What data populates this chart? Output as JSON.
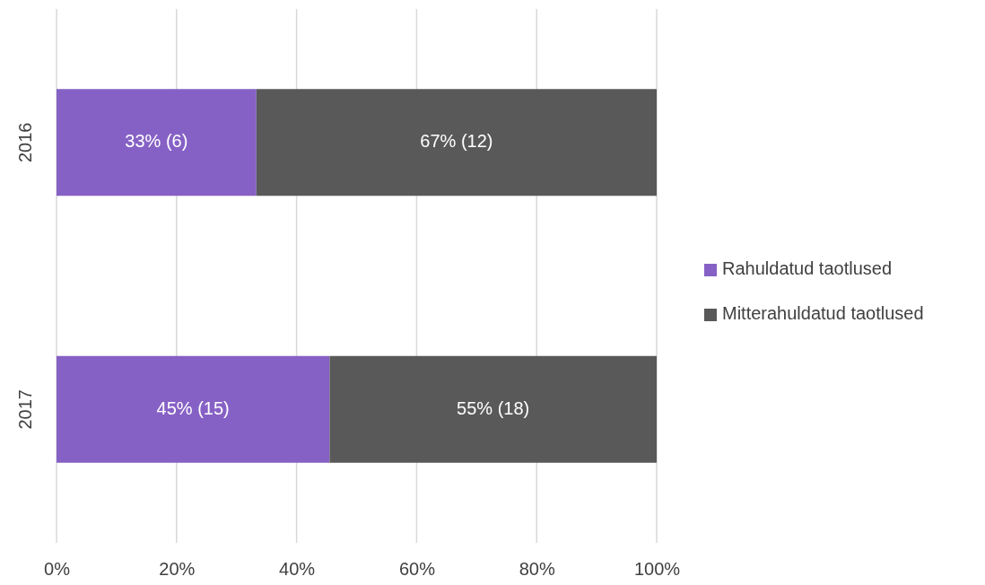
{
  "chart_data": {
    "type": "bar",
    "orientation": "horizontal",
    "stacked": true,
    "categories": [
      "2016",
      "2017"
    ],
    "series": [
      {
        "name": "Rahuldatud taotlused",
        "color": "#8661c5",
        "values": [
          33.3,
          45.5
        ],
        "value_labels": [
          "33% (6)",
          "45% (15)"
        ]
      },
      {
        "name": "Mitterahuldatud taotlused",
        "color": "#595959",
        "values": [
          66.7,
          54.5
        ],
        "value_labels": [
          "67% (12)",
          "55% (18)"
        ]
      }
    ],
    "xlim": [
      0,
      100
    ],
    "xticks": [
      {
        "value": 0,
        "label": "0%"
      },
      {
        "value": 20,
        "label": "20%"
      },
      {
        "value": 40,
        "label": "40%"
      },
      {
        "value": 60,
        "label": "60%"
      },
      {
        "value": 80,
        "label": "80%"
      },
      {
        "value": 100,
        "label": "100%"
      }
    ],
    "grid": "x",
    "legend": "right"
  }
}
